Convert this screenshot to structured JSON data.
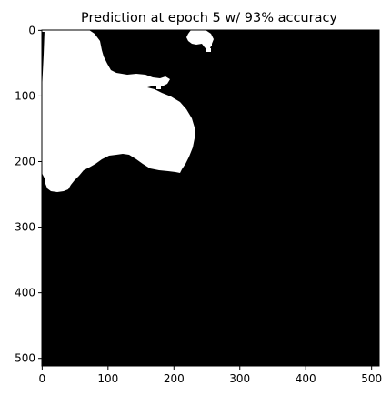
{
  "title": "Prediction at epoch 5 w/ 93% accuracy",
  "image": {
    "description_kind": "binary segmentation mask",
    "background_color": "#000000",
    "foreground_color": "#ffffff"
  },
  "axes": {
    "x_range": [
      0,
      511
    ],
    "y_range": [
      0,
      511
    ],
    "x_ticks": [
      0,
      100,
      200,
      300,
      400,
      500
    ],
    "y_ticks": [
      0,
      100,
      200,
      300,
      400,
      500
    ]
  }
}
